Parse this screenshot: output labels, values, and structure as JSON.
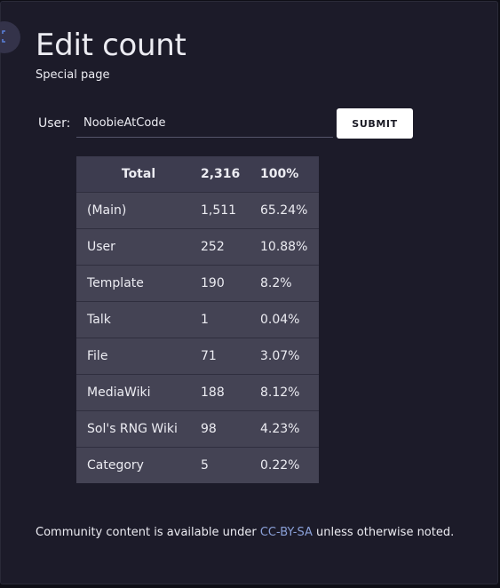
{
  "page": {
    "title": "Edit count",
    "subtitle": "Special page"
  },
  "form": {
    "user_label": "User:",
    "user_value": "NoobieAtCode",
    "submit_label": "SUBMIT"
  },
  "table": {
    "header": {
      "label": "Total",
      "count": "2,316",
      "percent": "100%"
    },
    "rows": [
      {
        "label": "(Main)",
        "count": "1,511",
        "percent": "65.24%"
      },
      {
        "label": "User",
        "count": "252",
        "percent": "10.88%"
      },
      {
        "label": "Template",
        "count": "190",
        "percent": "8.2%"
      },
      {
        "label": "Talk",
        "count": "1",
        "percent": "0.04%"
      },
      {
        "label": "File",
        "count": "71",
        "percent": "3.07%"
      },
      {
        "label": "MediaWiki",
        "count": "188",
        "percent": "8.12%"
      },
      {
        "label": "Sol's RNG Wiki",
        "count": "98",
        "percent": "4.23%"
      },
      {
        "label": "Category",
        "count": "5",
        "percent": "0.22%"
      }
    ]
  },
  "footer": {
    "prefix": "Community content is available under ",
    "license_link": "CC-BY-SA",
    "suffix": " unless otherwise noted."
  },
  "icons": {
    "expand": "expand-icon"
  },
  "colors": {
    "background": "#1c1b29",
    "table_header": "#3d3c4f",
    "table_row": "#444354",
    "link": "#8aa0d8",
    "button": "#ffffff"
  }
}
